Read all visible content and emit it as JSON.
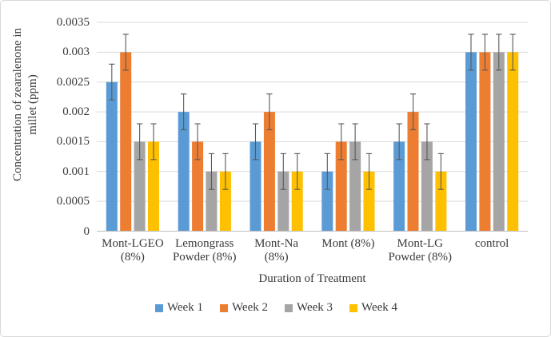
{
  "figure": {
    "background": "#ffffff",
    "border_color": "#d9d9d9"
  },
  "chart_data": {
    "type": "bar",
    "title": "",
    "xlabel": "Duration of Treatment",
    "ylabel": "Concentration of zearalenone in millet (ppm)",
    "ylabel_lines": [
      "Concentration of zearalenone in",
      "millet (ppm)"
    ],
    "categories": [
      "Mont-LGEO (8%)",
      "Lemongrass Powder (8%)",
      "Mont-Na (8%)",
      "Mont (8%)",
      "Mont-LG Powder (8%)",
      "control"
    ],
    "category_label_lines": [
      [
        "Mont-LGEO",
        "(8%)"
      ],
      [
        "Lemongrass",
        "Powder (8%)"
      ],
      [
        "Mont-Na",
        "(8%)"
      ],
      [
        "Mont (8%)"
      ],
      [
        "Mont-LG",
        "Powder (8%)"
      ],
      [
        "control"
      ]
    ],
    "series": [
      {
        "name": "Week 1",
        "color": "#5B9BD5",
        "values": [
          0.0025,
          0.002,
          0.0015,
          0.001,
          0.0015,
          0.003
        ]
      },
      {
        "name": "Week 2",
        "color": "#ED7D31",
        "values": [
          0.003,
          0.0015,
          0.002,
          0.0015,
          0.002,
          0.003
        ]
      },
      {
        "name": "Week 3",
        "color": "#A5A5A5",
        "values": [
          0.0015,
          0.001,
          0.001,
          0.0015,
          0.0015,
          0.003
        ]
      },
      {
        "name": "Week 4",
        "color": "#FFC000",
        "values": [
          0.0015,
          0.001,
          0.001,
          0.001,
          0.001,
          0.003
        ]
      }
    ],
    "error_bars": {
      "type": "symmetric",
      "value": 0.0003
    },
    "ylim": [
      0,
      0.0035
    ],
    "ytick_step": 0.0005,
    "yticks": [
      "0",
      "0.0005",
      "0.001",
      "0.0015",
      "0.002",
      "0.0025",
      "0.003",
      "0.0035"
    ],
    "grid": true,
    "legend_position": "bottom",
    "colors": {
      "gridline": "#d9d9d9",
      "axis_line": "#bfbfbf",
      "error_bar": "#595959",
      "text": "#3a3a3a"
    }
  }
}
